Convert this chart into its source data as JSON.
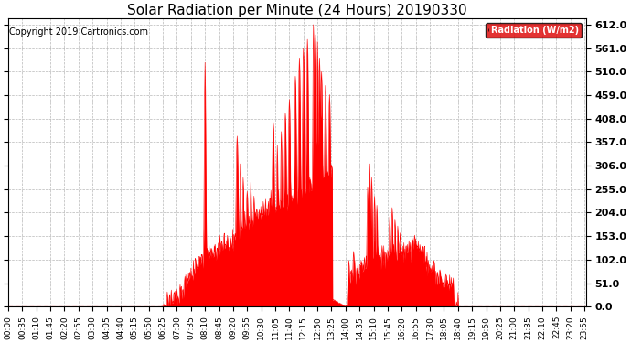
{
  "title": "Solar Radiation per Minute (24 Hours) 20190330",
  "copyright": "Copyright 2019 Cartronics.com",
  "legend_label": "Radiation (W/m2)",
  "yticks": [
    0.0,
    51.0,
    102.0,
    153.0,
    204.0,
    255.0,
    306.0,
    357.0,
    408.0,
    459.0,
    510.0,
    561.0,
    612.0
  ],
  "ymax": 625,
  "fill_color": "#ff0000",
  "line_color": "#ff0000",
  "background_color": "#ffffff",
  "grid_color": "#b0b0b0",
  "legend_bg": "#dd0000",
  "legend_text_color": "#ffffff",
  "title_fontsize": 11,
  "copyright_fontsize": 7,
  "tick_fontsize": 6.5,
  "ytick_fontsize": 8,
  "xtick_rotation": 90,
  "tick_step_min": 35,
  "figwidth": 6.9,
  "figheight": 3.75,
  "dpi": 100
}
